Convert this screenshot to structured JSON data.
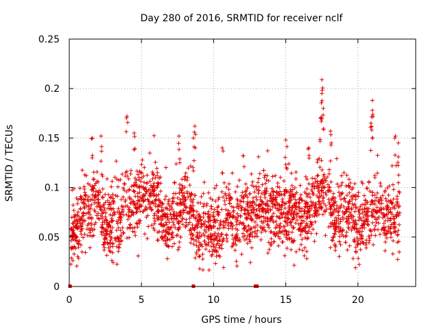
{
  "chart_data": {
    "type": "scatter",
    "title": "Day 280 of 2016, SRMTID for receiver nclf",
    "xlabel": "GPS time / hours",
    "ylabel": "SRMTID / TECUs",
    "xlim": [
      0,
      24
    ],
    "ylim": [
      0,
      0.25
    ],
    "xticks": [
      "0",
      "5",
      "10",
      "15",
      "20"
    ],
    "yticks": [
      "0",
      "0.05",
      "0.1",
      "0.15",
      "0.2",
      "0.25"
    ],
    "grid": true,
    "marker": "plus",
    "color": "#e00000",
    "zero_markers": [
      {
        "x": 0.05,
        "y": 0
      },
      {
        "x": 8.6,
        "y": 0
      },
      {
        "x": 12.9,
        "y": 0
      },
      {
        "x": 13.0,
        "y": 0
      }
    ],
    "series": [
      {
        "name": "SRMTID",
        "trend": [
          [
            0.0,
            0.05
          ],
          [
            0.5,
            0.06
          ],
          [
            1.0,
            0.075
          ],
          [
            1.5,
            0.08
          ],
          [
            2.0,
            0.09
          ],
          [
            2.5,
            0.06
          ],
          [
            3.0,
            0.065
          ],
          [
            3.5,
            0.065
          ],
          [
            4.0,
            0.085
          ],
          [
            4.5,
            0.08
          ],
          [
            5.0,
            0.09
          ],
          [
            5.5,
            0.085
          ],
          [
            6.0,
            0.09
          ],
          [
            6.5,
            0.07
          ],
          [
            7.0,
            0.065
          ],
          [
            7.5,
            0.075
          ],
          [
            8.0,
            0.085
          ],
          [
            8.5,
            0.075
          ],
          [
            9.0,
            0.055
          ],
          [
            9.5,
            0.06
          ],
          [
            10.0,
            0.055
          ],
          [
            10.5,
            0.06
          ],
          [
            11.0,
            0.07
          ],
          [
            11.5,
            0.06
          ],
          [
            12.0,
            0.075
          ],
          [
            12.5,
            0.065
          ],
          [
            13.0,
            0.085
          ],
          [
            13.5,
            0.08
          ],
          [
            14.0,
            0.075
          ],
          [
            14.5,
            0.07
          ],
          [
            15.0,
            0.075
          ],
          [
            15.5,
            0.075
          ],
          [
            16.0,
            0.065
          ],
          [
            16.5,
            0.07
          ],
          [
            17.0,
            0.08
          ],
          [
            17.5,
            0.1
          ],
          [
            18.0,
            0.085
          ],
          [
            18.5,
            0.065
          ],
          [
            19.0,
            0.075
          ],
          [
            19.5,
            0.08
          ],
          [
            20.0,
            0.055
          ],
          [
            20.5,
            0.07
          ],
          [
            21.0,
            0.08
          ],
          [
            21.5,
            0.075
          ],
          [
            22.0,
            0.065
          ],
          [
            22.5,
            0.07
          ],
          [
            22.9,
            0.075
          ]
        ],
        "peaks": [
          [
            4.0,
            0.172
          ],
          [
            4.5,
            0.155
          ],
          [
            8.7,
            0.162
          ],
          [
            8.6,
            0.15
          ],
          [
            1.6,
            0.15
          ],
          [
            2.2,
            0.152
          ],
          [
            7.6,
            0.152
          ],
          [
            10.6,
            0.14
          ],
          [
            15.0,
            0.148
          ],
          [
            17.5,
            0.209
          ],
          [
            17.5,
            0.195
          ],
          [
            17.6,
            0.18
          ],
          [
            17.4,
            0.17
          ],
          [
            18.1,
            0.157
          ],
          [
            21.0,
            0.188
          ],
          [
            21.0,
            0.178
          ],
          [
            20.9,
            0.165
          ],
          [
            22.6,
            0.152
          ],
          [
            22.8,
            0.145
          ],
          [
            16.6,
            0.14
          ]
        ],
        "x_range": [
          0.1,
          22.9
        ],
        "n_points": 2300
      }
    ]
  }
}
